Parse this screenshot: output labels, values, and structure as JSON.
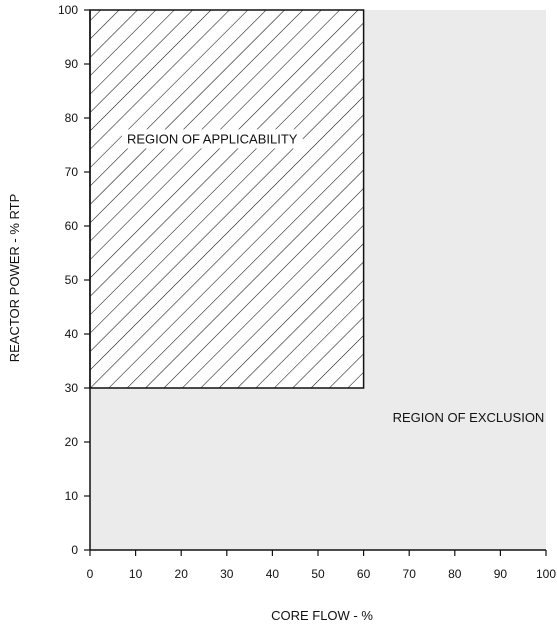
{
  "chart_data": {
    "type": "area",
    "xlabel": "CORE FLOW - %",
    "ylabel": "REACTOR POWER - % RTP",
    "xlim": [
      0,
      100
    ],
    "ylim": [
      0,
      100
    ],
    "x_ticks": [
      0,
      10,
      20,
      30,
      40,
      50,
      60,
      70,
      80,
      90,
      100
    ],
    "y_ticks": [
      0,
      10,
      20,
      30,
      40,
      50,
      60,
      70,
      80,
      90,
      100
    ],
    "grid": false,
    "regions": [
      {
        "name": "REGION OF APPLICABILITY",
        "x_range": [
          0,
          60
        ],
        "y_range": [
          30,
          100
        ],
        "fill": "hatched"
      },
      {
        "name": "REGION OF EXCLUSION",
        "polygon": [
          [
            0,
            0
          ],
          [
            100,
            0
          ],
          [
            100,
            100
          ],
          [
            60,
            100
          ],
          [
            60,
            30
          ],
          [
            0,
            30
          ]
        ],
        "fill": "#ebebeb"
      }
    ],
    "colors": {
      "exclusion_fill": "#ebebeb",
      "hatch": "#111111",
      "axis": "#111111"
    }
  }
}
